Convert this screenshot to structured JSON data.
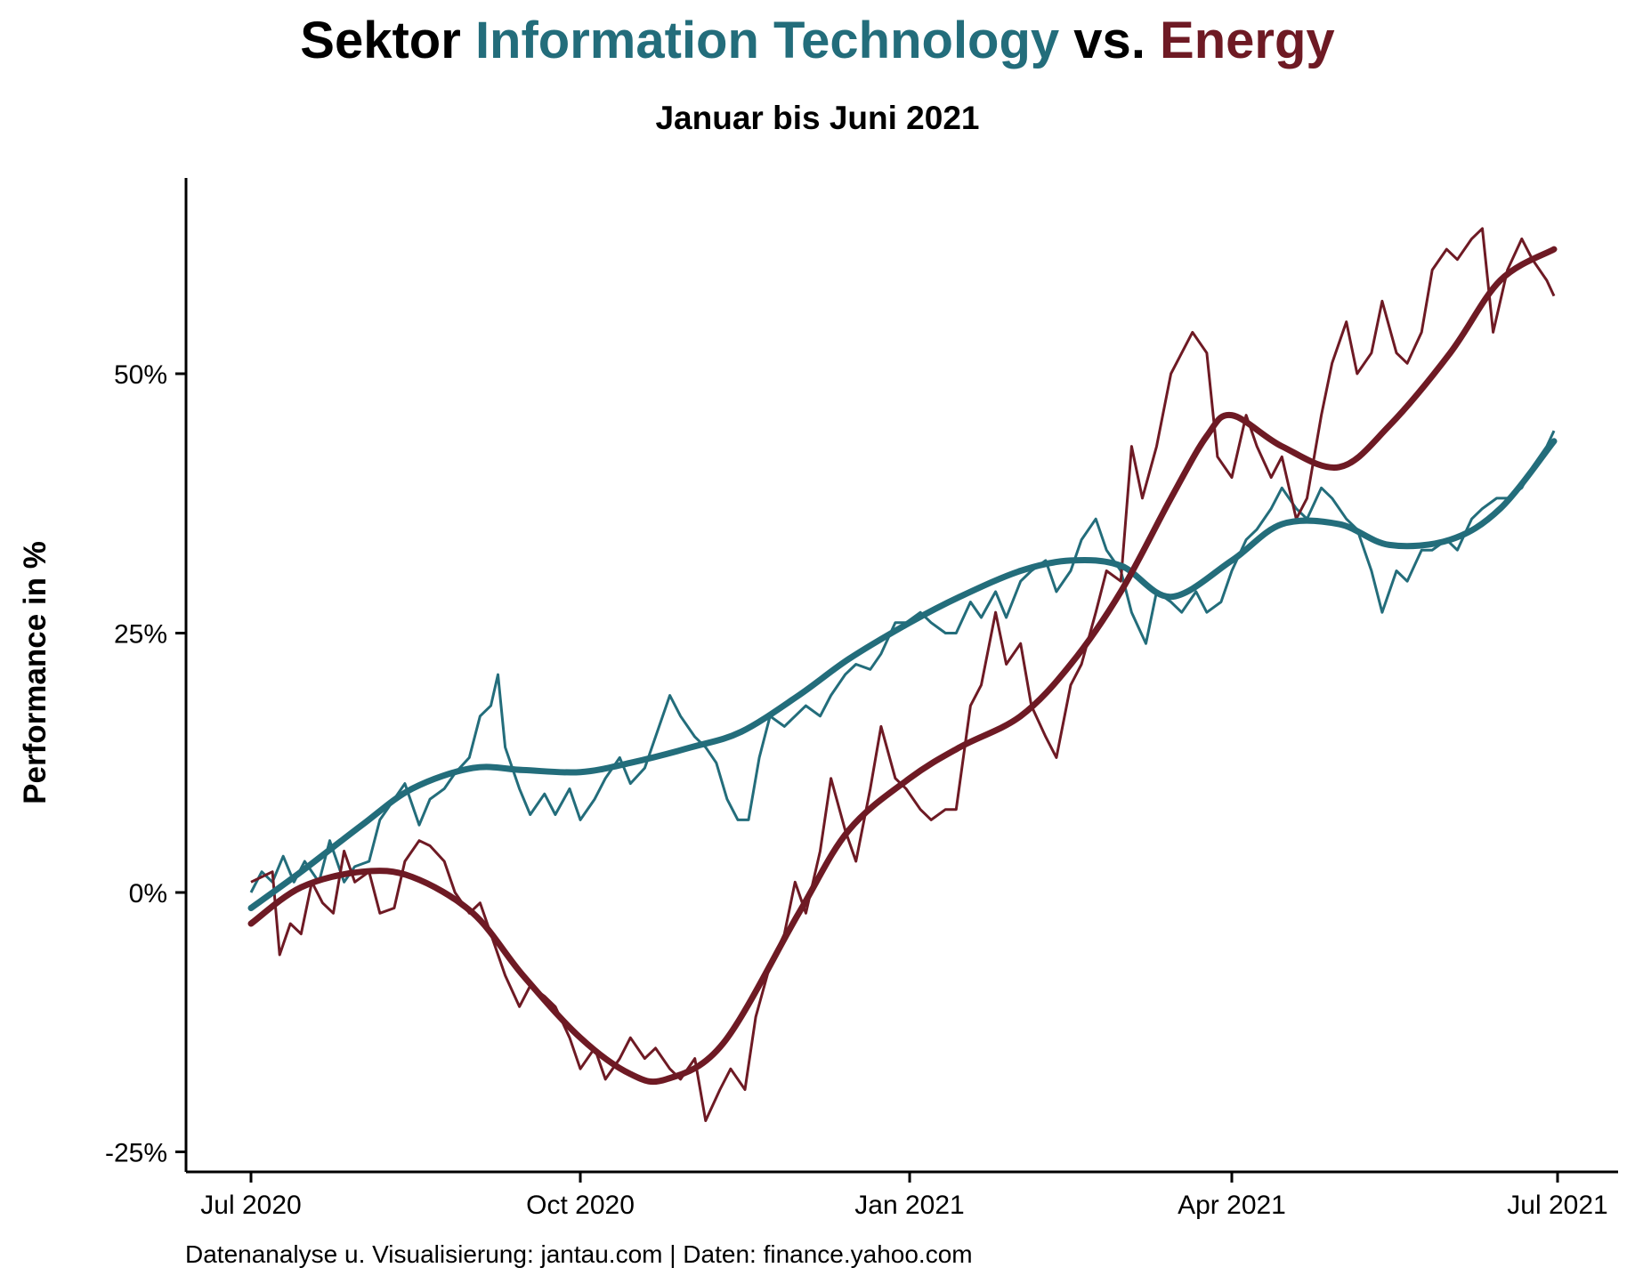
{
  "title": {
    "prefix": "Sektor ",
    "series1": "Information Technology",
    "middle": " vs. ",
    "series2": "Energy"
  },
  "subtitle": "Januar bis Juni 2021",
  "caption": "Datenanalyse u. Visualisierung: jantau.com | Daten: finance.yahoo.com",
  "colors": {
    "it": "#236d7b",
    "energy": "#6e1a24",
    "axis": "#000000"
  },
  "chart_data": {
    "type": "line",
    "title": "Sektor Information Technology vs. Energy",
    "subtitle": "Januar bis Juni 2021",
    "xlabel": "",
    "ylabel": "Performance in %",
    "xlim": [
      "2020-06-20",
      "2021-07-06"
    ],
    "ylim": [
      -25,
      70
    ],
    "x_ticks": [
      {
        "date": "2020-07-01",
        "label": "Jul 2020"
      },
      {
        "date": "2020-10-01",
        "label": "Oct 2020"
      },
      {
        "date": "2021-01-01",
        "label": "Jan 2021"
      },
      {
        "date": "2021-04-01",
        "label": "Apr 2021"
      },
      {
        "date": "2021-07-01",
        "label": "Jul 2021"
      }
    ],
    "y_ticks": [
      {
        "value": -25,
        "label": "-25%"
      },
      {
        "value": 0,
        "label": "0%"
      },
      {
        "value": 25,
        "label": "25%"
      },
      {
        "value": 50,
        "label": "50%"
      }
    ],
    "grid": false,
    "series": [
      {
        "key": "it",
        "name": "Information Technology",
        "points": [
          [
            "2020-07-01",
            0
          ],
          [
            "2020-07-04",
            2
          ],
          [
            "2020-07-07",
            1
          ],
          [
            "2020-07-10",
            3.5
          ],
          [
            "2020-07-13",
            1
          ],
          [
            "2020-07-16",
            3
          ],
          [
            "2020-07-20",
            1
          ],
          [
            "2020-07-23",
            5
          ],
          [
            "2020-07-27",
            1
          ],
          [
            "2020-07-30",
            2.5
          ],
          [
            "2020-08-03",
            3
          ],
          [
            "2020-08-06",
            7
          ],
          [
            "2020-08-10",
            9
          ],
          [
            "2020-08-13",
            10.5
          ],
          [
            "2020-08-17",
            6.5
          ],
          [
            "2020-08-20",
            9
          ],
          [
            "2020-08-24",
            10
          ],
          [
            "2020-08-27",
            11.5
          ],
          [
            "2020-08-31",
            13
          ],
          [
            "2020-09-03",
            17
          ],
          [
            "2020-09-06",
            18
          ],
          [
            "2020-09-08",
            21
          ],
          [
            "2020-09-10",
            14
          ],
          [
            "2020-09-14",
            10
          ],
          [
            "2020-09-17",
            7.5
          ],
          [
            "2020-09-21",
            9.5
          ],
          [
            "2020-09-24",
            7.5
          ],
          [
            "2020-09-28",
            10
          ],
          [
            "2020-10-01",
            7
          ],
          [
            "2020-10-05",
            9
          ],
          [
            "2020-10-08",
            11
          ],
          [
            "2020-10-12",
            13
          ],
          [
            "2020-10-15",
            10.5
          ],
          [
            "2020-10-19",
            12
          ],
          [
            "2020-10-22",
            15
          ],
          [
            "2020-10-26",
            19
          ],
          [
            "2020-10-29",
            17
          ],
          [
            "2020-11-02",
            15
          ],
          [
            "2020-11-05",
            14
          ],
          [
            "2020-11-08",
            12.5
          ],
          [
            "2020-11-11",
            9
          ],
          [
            "2020-11-14",
            7
          ],
          [
            "2020-11-17",
            7
          ],
          [
            "2020-11-20",
            13
          ],
          [
            "2020-11-23",
            17
          ],
          [
            "2020-11-27",
            16
          ],
          [
            "2020-11-30",
            17
          ],
          [
            "2020-12-03",
            18
          ],
          [
            "2020-12-07",
            17
          ],
          [
            "2020-12-10",
            19
          ],
          [
            "2020-12-14",
            21
          ],
          [
            "2020-12-17",
            22
          ],
          [
            "2020-12-21",
            21.5
          ],
          [
            "2020-12-24",
            23
          ],
          [
            "2020-12-28",
            26
          ],
          [
            "2020-12-31",
            26
          ],
          [
            "2021-01-04",
            27
          ],
          [
            "2021-01-07",
            26
          ],
          [
            "2021-01-11",
            25
          ],
          [
            "2021-01-14",
            25
          ],
          [
            "2021-01-18",
            28
          ],
          [
            "2021-01-21",
            26.5
          ],
          [
            "2021-01-25",
            29
          ],
          [
            "2021-01-28",
            26.5
          ],
          [
            "2021-02-01",
            30
          ],
          [
            "2021-02-04",
            31
          ],
          [
            "2021-02-08",
            32
          ],
          [
            "2021-02-11",
            29
          ],
          [
            "2021-02-15",
            31
          ],
          [
            "2021-02-18",
            34
          ],
          [
            "2021-02-22",
            36
          ],
          [
            "2021-02-25",
            33
          ],
          [
            "2021-03-01",
            31
          ],
          [
            "2021-03-04",
            27
          ],
          [
            "2021-03-08",
            24
          ],
          [
            "2021-03-11",
            29
          ],
          [
            "2021-03-15",
            28
          ],
          [
            "2021-03-18",
            27
          ],
          [
            "2021-03-22",
            29
          ],
          [
            "2021-03-25",
            27
          ],
          [
            "2021-03-29",
            28
          ],
          [
            "2021-04-01",
            31
          ],
          [
            "2021-04-05",
            34
          ],
          [
            "2021-04-08",
            35
          ],
          [
            "2021-04-12",
            37
          ],
          [
            "2021-04-15",
            39
          ],
          [
            "2021-04-19",
            37
          ],
          [
            "2021-04-22",
            36
          ],
          [
            "2021-04-26",
            39
          ],
          [
            "2021-04-29",
            38
          ],
          [
            "2021-05-03",
            36
          ],
          [
            "2021-05-06",
            35
          ],
          [
            "2021-05-10",
            31
          ],
          [
            "2021-05-13",
            27
          ],
          [
            "2021-05-17",
            31
          ],
          [
            "2021-05-20",
            30
          ],
          [
            "2021-05-24",
            33
          ],
          [
            "2021-05-27",
            33
          ],
          [
            "2021-05-31",
            34
          ],
          [
            "2021-06-03",
            33
          ],
          [
            "2021-06-07",
            36
          ],
          [
            "2021-06-10",
            37
          ],
          [
            "2021-06-14",
            38
          ],
          [
            "2021-06-17",
            38
          ],
          [
            "2021-06-21",
            39
          ],
          [
            "2021-06-24",
            41
          ],
          [
            "2021-06-28",
            43
          ],
          [
            "2021-06-30",
            44.5
          ]
        ],
        "trend": [
          [
            "2020-07-01",
            -1.5
          ],
          [
            "2020-07-15",
            2
          ],
          [
            "2020-08-01",
            6.5
          ],
          [
            "2020-08-15",
            10
          ],
          [
            "2020-09-01",
            12
          ],
          [
            "2020-09-15",
            11.8
          ],
          [
            "2020-10-01",
            11.6
          ],
          [
            "2020-10-15",
            12.5
          ],
          [
            "2020-11-01",
            14
          ],
          [
            "2020-11-15",
            15.5
          ],
          [
            "2020-12-01",
            19
          ],
          [
            "2020-12-15",
            22.5
          ],
          [
            "2021-01-01",
            26
          ],
          [
            "2021-01-15",
            28.5
          ],
          [
            "2021-02-01",
            31
          ],
          [
            "2021-02-15",
            32
          ],
          [
            "2021-03-01",
            31.5
          ],
          [
            "2021-03-15",
            28.5
          ],
          [
            "2021-04-01",
            32
          ],
          [
            "2021-04-15",
            35.5
          ],
          [
            "2021-05-01",
            35.5
          ],
          [
            "2021-05-15",
            33.5
          ],
          [
            "2021-06-01",
            34
          ],
          [
            "2021-06-15",
            37
          ],
          [
            "2021-06-30",
            43.5
          ]
        ]
      },
      {
        "key": "energy",
        "name": "Energy",
        "points": [
          [
            "2020-07-01",
            1
          ],
          [
            "2020-07-04",
            1.5
          ],
          [
            "2020-07-07",
            2
          ],
          [
            "2020-07-09",
            -6
          ],
          [
            "2020-07-12",
            -3
          ],
          [
            "2020-07-15",
            -4
          ],
          [
            "2020-07-18",
            1
          ],
          [
            "2020-07-21",
            -1
          ],
          [
            "2020-07-24",
            -2
          ],
          [
            "2020-07-27",
            4
          ],
          [
            "2020-07-30",
            1
          ],
          [
            "2020-08-03",
            2
          ],
          [
            "2020-08-06",
            -2
          ],
          [
            "2020-08-10",
            -1.5
          ],
          [
            "2020-08-13",
            3
          ],
          [
            "2020-08-17",
            5
          ],
          [
            "2020-08-20",
            4.5
          ],
          [
            "2020-08-24",
            3
          ],
          [
            "2020-08-27",
            0
          ],
          [
            "2020-08-31",
            -2
          ],
          [
            "2020-09-03",
            -1
          ],
          [
            "2020-09-07",
            -5
          ],
          [
            "2020-09-10",
            -8
          ],
          [
            "2020-09-14",
            -11
          ],
          [
            "2020-09-17",
            -9
          ],
          [
            "2020-09-21",
            -10
          ],
          [
            "2020-09-24",
            -11
          ],
          [
            "2020-09-28",
            -14
          ],
          [
            "2020-10-01",
            -17
          ],
          [
            "2020-10-05",
            -15
          ],
          [
            "2020-10-08",
            -18
          ],
          [
            "2020-10-12",
            -16
          ],
          [
            "2020-10-15",
            -14
          ],
          [
            "2020-10-19",
            -16
          ],
          [
            "2020-10-22",
            -15
          ],
          [
            "2020-10-26",
            -17
          ],
          [
            "2020-10-29",
            -18
          ],
          [
            "2020-11-02",
            -16
          ],
          [
            "2020-11-05",
            -22
          ],
          [
            "2020-11-09",
            -19
          ],
          [
            "2020-11-12",
            -17
          ],
          [
            "2020-11-16",
            -19
          ],
          [
            "2020-11-19",
            -12
          ],
          [
            "2020-11-23",
            -7
          ],
          [
            "2020-11-27",
            -4
          ],
          [
            "2020-11-30",
            1
          ],
          [
            "2020-12-03",
            -2
          ],
          [
            "2020-12-07",
            4
          ],
          [
            "2020-12-10",
            11
          ],
          [
            "2020-12-14",
            6
          ],
          [
            "2020-12-17",
            3
          ],
          [
            "2020-12-21",
            10
          ],
          [
            "2020-12-24",
            16
          ],
          [
            "2020-12-28",
            11
          ],
          [
            "2020-12-31",
            10
          ],
          [
            "2021-01-04",
            8
          ],
          [
            "2021-01-07",
            7
          ],
          [
            "2021-01-11",
            8
          ],
          [
            "2021-01-14",
            8
          ],
          [
            "2021-01-18",
            18
          ],
          [
            "2021-01-21",
            20
          ],
          [
            "2021-01-25",
            27
          ],
          [
            "2021-01-28",
            22
          ],
          [
            "2021-02-01",
            24
          ],
          [
            "2021-02-04",
            18
          ],
          [
            "2021-02-08",
            15
          ],
          [
            "2021-02-11",
            13
          ],
          [
            "2021-02-15",
            20
          ],
          [
            "2021-02-18",
            22
          ],
          [
            "2021-02-22",
            27
          ],
          [
            "2021-02-25",
            31
          ],
          [
            "2021-03-01",
            30
          ],
          [
            "2021-03-04",
            43
          ],
          [
            "2021-03-07",
            38
          ],
          [
            "2021-03-11",
            43
          ],
          [
            "2021-03-15",
            50
          ],
          [
            "2021-03-18",
            52
          ],
          [
            "2021-03-21",
            54
          ],
          [
            "2021-03-25",
            52
          ],
          [
            "2021-03-28",
            42
          ],
          [
            "2021-04-01",
            40
          ],
          [
            "2021-04-05",
            46
          ],
          [
            "2021-04-08",
            43
          ],
          [
            "2021-04-12",
            40
          ],
          [
            "2021-04-15",
            42
          ],
          [
            "2021-04-19",
            36
          ],
          [
            "2021-04-22",
            38
          ],
          [
            "2021-04-26",
            46
          ],
          [
            "2021-04-29",
            51
          ],
          [
            "2021-05-03",
            55
          ],
          [
            "2021-05-06",
            50
          ],
          [
            "2021-05-10",
            52
          ],
          [
            "2021-05-13",
            57
          ],
          [
            "2021-05-17",
            52
          ],
          [
            "2021-05-20",
            51
          ],
          [
            "2021-05-24",
            54
          ],
          [
            "2021-05-27",
            60
          ],
          [
            "2021-05-31",
            62
          ],
          [
            "2021-06-03",
            61
          ],
          [
            "2021-06-07",
            63
          ],
          [
            "2021-06-10",
            64
          ],
          [
            "2021-06-13",
            54
          ],
          [
            "2021-06-17",
            60
          ],
          [
            "2021-06-21",
            63
          ],
          [
            "2021-06-24",
            61
          ],
          [
            "2021-06-28",
            59
          ],
          [
            "2021-06-30",
            57.5
          ]
        ],
        "trend": [
          [
            "2020-07-01",
            -3
          ],
          [
            "2020-07-15",
            0.5
          ],
          [
            "2020-08-01",
            2
          ],
          [
            "2020-08-15",
            1.5
          ],
          [
            "2020-09-01",
            -2
          ],
          [
            "2020-09-15",
            -8
          ],
          [
            "2020-10-01",
            -14
          ],
          [
            "2020-10-15",
            -17.5
          ],
          [
            "2020-10-25",
            -18
          ],
          [
            "2020-11-10",
            -14.5
          ],
          [
            "2020-12-01",
            -2
          ],
          [
            "2020-12-15",
            6
          ],
          [
            "2021-01-01",
            11
          ],
          [
            "2021-01-15",
            14
          ],
          [
            "2021-02-01",
            17
          ],
          [
            "2021-02-15",
            22
          ],
          [
            "2021-03-01",
            29
          ],
          [
            "2021-03-15",
            38
          ],
          [
            "2021-03-25",
            44
          ],
          [
            "2021-04-01",
            46
          ],
          [
            "2021-04-15",
            43
          ],
          [
            "2021-05-01",
            41
          ],
          [
            "2021-05-15",
            45
          ],
          [
            "2021-06-01",
            52
          ],
          [
            "2021-06-15",
            59
          ],
          [
            "2021-06-30",
            62
          ]
        ]
      }
    ]
  }
}
